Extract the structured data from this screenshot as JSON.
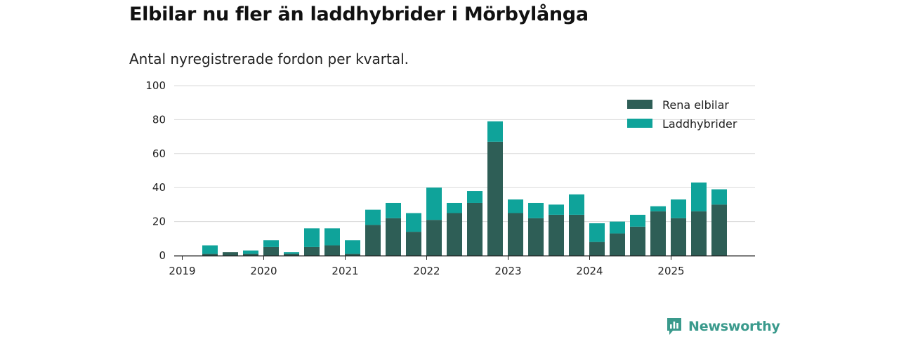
{
  "header": {
    "title": "Elbilar nu fler än laddhybrider i Mörbylånga",
    "subtitle": "Antal nyregistrerade fordon per kvartal."
  },
  "brand": {
    "name": "Newsworthy",
    "icon": "newsworthy-logo-icon",
    "color": "#3a9a8c"
  },
  "colors": {
    "elbilar": "#2e5e56",
    "laddhybrider": "#0fa39a",
    "grid": "#d9d9d9",
    "axis": "#222222"
  },
  "chart_data": {
    "type": "bar",
    "stacked": true,
    "title": "Elbilar nu fler än laddhybrider i Mörbylånga",
    "subtitle": "Antal nyregistrerade fordon per kvartal.",
    "xlabel": "",
    "ylabel": "",
    "ylim": [
      0,
      100
    ],
    "yticks": [
      0,
      20,
      40,
      60,
      80,
      100
    ],
    "x_tick_labels": [
      "2019",
      "2020",
      "2021",
      "2022",
      "2023",
      "2024",
      "2025"
    ],
    "categories": [
      "2019 Q2",
      "2019 Q3",
      "2019 Q4",
      "2020 Q1",
      "2020 Q2",
      "2020 Q3",
      "2020 Q4",
      "2021 Q1",
      "2021 Q2",
      "2021 Q3",
      "2021 Q4",
      "2022 Q1",
      "2022 Q2",
      "2022 Q3",
      "2022 Q4",
      "2023 Q1",
      "2023 Q2",
      "2023 Q3",
      "2023 Q4",
      "2024 Q1",
      "2024 Q2",
      "2024 Q3",
      "2024 Q4",
      "2025 Q1",
      "2025 Q2",
      "2025 Q3"
    ],
    "series": [
      {
        "name": "Rena elbilar",
        "color": "#2e5e56",
        "values": [
          1,
          2,
          1,
          5,
          1,
          5,
          6,
          1,
          18,
          22,
          14,
          21,
          25,
          31,
          67,
          25,
          22,
          24,
          24,
          8,
          13,
          17,
          26,
          22,
          26,
          30
        ]
      },
      {
        "name": "Laddhybrider",
        "color": "#0fa39a",
        "values": [
          5,
          0,
          2,
          4,
          1,
          11,
          10,
          8,
          9,
          9,
          11,
          19,
          6,
          7,
          12,
          8,
          9,
          6,
          12,
          11,
          7,
          7,
          3,
          11,
          17,
          9
        ]
      }
    ],
    "legend": {
      "position": "top-right",
      "entries": [
        "Rena elbilar",
        "Laddhybrider"
      ]
    },
    "grid": true
  }
}
